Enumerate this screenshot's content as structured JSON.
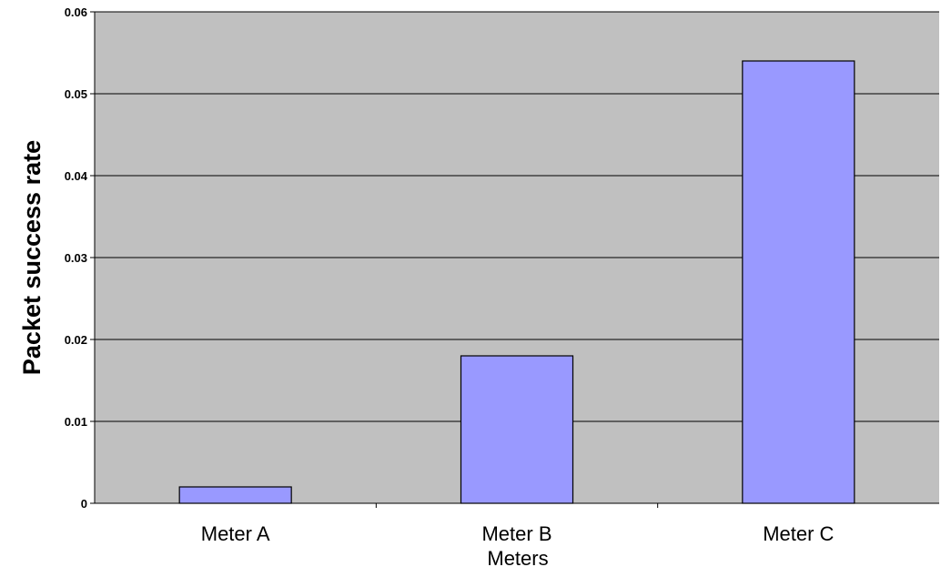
{
  "chart_data": {
    "type": "bar",
    "categories": [
      "Meter A",
      "Meter B",
      "Meter C"
    ],
    "values": [
      0.002,
      0.018,
      0.054
    ],
    "title": "",
    "xlabel": "Meters",
    "ylabel": "Packet success rate",
    "ylim": [
      0,
      0.06
    ],
    "yticks": [
      "0",
      "0.01",
      "0.02",
      "0.03",
      "0.04",
      "0.05",
      "0.06"
    ],
    "grid": true,
    "legend": "none",
    "colors": {
      "plot_background": "#c0c0c0",
      "bar_fill": "#9999ff",
      "bar_stroke": "#000000",
      "gridline": "#000000"
    }
  }
}
